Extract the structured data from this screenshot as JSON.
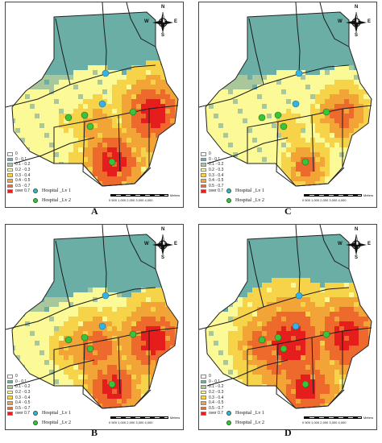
{
  "panels": [
    {
      "label": "A",
      "variant": 0
    },
    {
      "label": "C",
      "variant": 1
    },
    {
      "label": "B",
      "variant": 2
    },
    {
      "label": "D",
      "variant": 3
    }
  ],
  "legend": {
    "classes": [
      {
        "label": "0",
        "color": "#ffffff"
      },
      {
        "label": "0 - 0.1",
        "color": "#6aaea6"
      },
      {
        "label": "0.1 - 0.2",
        "color": "#a9c79a"
      },
      {
        "label": "0.2 - 0.3",
        "color": "#fbfa96"
      },
      {
        "label": "0.3 - 0.4",
        "color": "#f7d34a"
      },
      {
        "label": "0.4 - 0.5",
        "color": "#f3a437"
      },
      {
        "label": "0.5 - 0.7",
        "color": "#ee6a2c"
      },
      {
        "label": "over 0.7",
        "color": "#e51d1d"
      }
    ],
    "hospital_lv1": {
      "label": "Hospital _Lv 1",
      "color": "#33b3e6"
    },
    "hospital_lv2": {
      "label": "Hospital _Lv 2",
      "color": "#3ac43a"
    }
  },
  "compass": {
    "n": "N",
    "s": "S",
    "e": "E",
    "w": "W"
  },
  "scale": {
    "ticks": "0  500 1,000      2,000      3,000      4,000",
    "unit": "Meters"
  }
}
